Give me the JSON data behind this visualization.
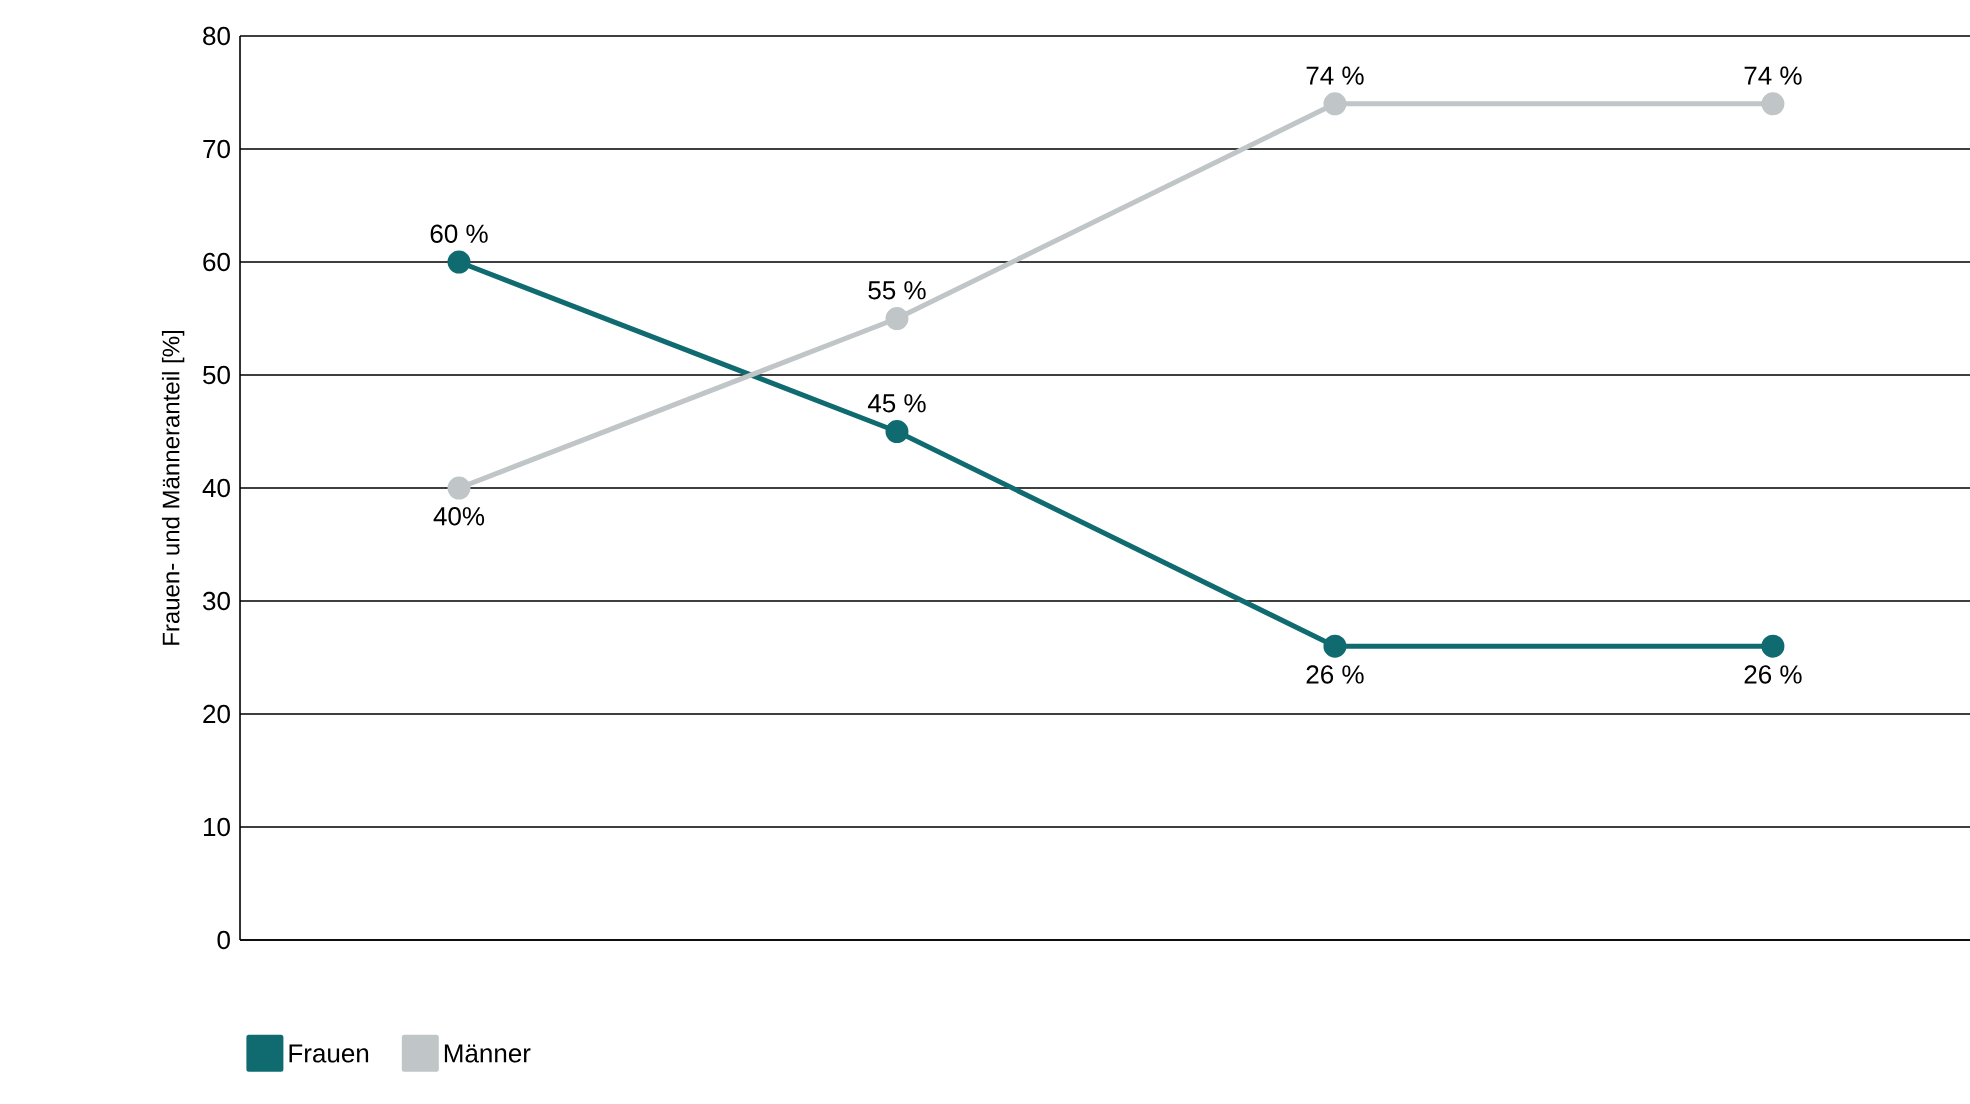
{
  "chart_data": {
    "type": "line",
    "ylabel": "Frauen- und Männeranteil [%]",
    "categories": [
      null,
      null,
      null,
      null
    ],
    "series": [
      {
        "name": "Frauen",
        "color": "#0f6b70",
        "values": [
          60,
          45,
          26,
          26
        ],
        "value_labels": [
          "60 %",
          "45 %",
          "26 %",
          "26 %"
        ]
      },
      {
        "name": "Männer",
        "color": "#c0c5c8",
        "values": [
          40,
          55,
          74,
          74
        ],
        "value_labels": [
          "40%",
          "55 %",
          "74 %",
          "74 %"
        ]
      }
    ],
    "ylim": [
      0,
      80
    ],
    "yticks": [
      0,
      10,
      20,
      30,
      40,
      50,
      60,
      70,
      80
    ],
    "grid": "y",
    "legend": "bottom left",
    "marker": "circle",
    "line_style": "solid"
  }
}
